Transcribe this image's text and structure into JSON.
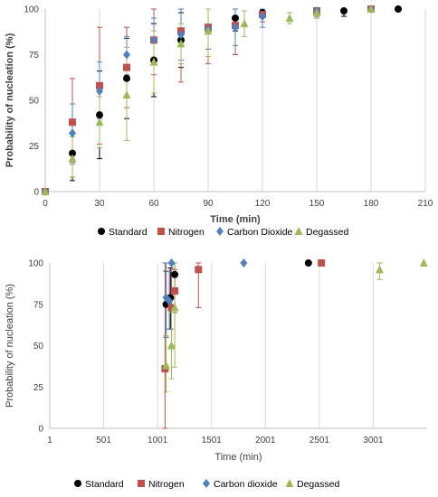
{
  "series_colors": {
    "Standard": "#000000",
    "Nitrogen": "#c0504d",
    "Carbon Dioxide": "#4f81bd",
    "Degassed": "#9bbb59"
  },
  "chart_data": [
    {
      "type": "scatter",
      "title": "",
      "xlabel": "Time (min)",
      "ylabel": "Probability of nucleation (%)",
      "xlim": [
        0,
        210
      ],
      "ylim": [
        0,
        100
      ],
      "xticks": [
        0,
        30,
        60,
        90,
        120,
        150,
        180,
        210
      ],
      "yticks": [
        0,
        25,
        50,
        75,
        100
      ],
      "grid": "vertical",
      "legend_position": "bottom",
      "series": [
        {
          "name": "Standard",
          "marker": "circle",
          "points": [
            {
              "x": 0,
              "y": 0,
              "lo": 0,
              "hi": 0
            },
            {
              "x": 15,
              "y": 21,
              "lo": 6,
              "hi": 37
            },
            {
              "x": 30,
              "y": 42,
              "lo": 18,
              "hi": 66
            },
            {
              "x": 45,
              "y": 62,
              "lo": 40,
              "hi": 84
            },
            {
              "x": 60,
              "y": 72,
              "lo": 52,
              "hi": 92
            },
            {
              "x": 75,
              "y": 83,
              "lo": 68,
              "hi": 98
            },
            {
              "x": 90,
              "y": 89,
              "lo": 78,
              "hi": 100
            },
            {
              "x": 105,
              "y": 95,
              "lo": 88,
              "hi": 100
            },
            {
              "x": 120,
              "y": 98,
              "lo": 96,
              "hi": 100
            },
            {
              "x": 165,
              "y": 99,
              "lo": 96,
              "hi": 100
            },
            {
              "x": 195,
              "y": 100,
              "lo": 100,
              "hi": 100
            }
          ]
        },
        {
          "name": "Nitrogen",
          "marker": "square",
          "points": [
            {
              "x": 0,
              "y": 0,
              "lo": 0,
              "hi": 0
            },
            {
              "x": 15,
              "y": 38,
              "lo": 15,
              "hi": 62
            },
            {
              "x": 30,
              "y": 58,
              "lo": 26,
              "hi": 90
            },
            {
              "x": 45,
              "y": 68,
              "lo": 46,
              "hi": 90
            },
            {
              "x": 60,
              "y": 83,
              "lo": 64,
              "hi": 100
            },
            {
              "x": 75,
              "y": 88,
              "lo": 60,
              "hi": 100
            },
            {
              "x": 90,
              "y": 90,
              "lo": 70,
              "hi": 100
            },
            {
              "x": 105,
              "y": 91,
              "lo": 75,
              "hi": 100
            },
            {
              "x": 120,
              "y": 97,
              "lo": 93,
              "hi": 100
            },
            {
              "x": 150,
              "y": 99,
              "lo": 95,
              "hi": 100
            },
            {
              "x": 180,
              "y": 100,
              "lo": 100,
              "hi": 100
            }
          ]
        },
        {
          "name": "Carbon Dioxide",
          "marker": "diamond",
          "points": [
            {
              "x": 0,
              "y": 0,
              "lo": 0,
              "hi": 0
            },
            {
              "x": 15,
              "y": 32,
              "lo": 16,
              "hi": 48
            },
            {
              "x": 30,
              "y": 55,
              "lo": 40,
              "hi": 71
            },
            {
              "x": 45,
              "y": 75,
              "lo": 64,
              "hi": 85
            },
            {
              "x": 60,
              "y": 83,
              "lo": 71,
              "hi": 95
            },
            {
              "x": 75,
              "y": 86,
              "lo": 72,
              "hi": 100
            },
            {
              "x": 90,
              "y": 89,
              "lo": 78,
              "hi": 100
            },
            {
              "x": 105,
              "y": 90,
              "lo": 80,
              "hi": 100
            },
            {
              "x": 120,
              "y": 96,
              "lo": 90,
              "hi": 100
            },
            {
              "x": 150,
              "y": 99,
              "lo": 96,
              "hi": 100
            },
            {
              "x": 180,
              "y": 100,
              "lo": 100,
              "hi": 100
            }
          ]
        },
        {
          "name": "Degassed",
          "marker": "triangle",
          "points": [
            {
              "x": 0,
              "y": 0,
              "lo": 0,
              "hi": 0
            },
            {
              "x": 15,
              "y": 18,
              "lo": 8,
              "hi": 30
            },
            {
              "x": 30,
              "y": 38,
              "lo": 24,
              "hi": 52
            },
            {
              "x": 45,
              "y": 53,
              "lo": 28,
              "hi": 79
            },
            {
              "x": 60,
              "y": 71,
              "lo": 54,
              "hi": 88
            },
            {
              "x": 75,
              "y": 81,
              "lo": 70,
              "hi": 92
            },
            {
              "x": 90,
              "y": 88,
              "lo": 74,
              "hi": 100
            },
            {
              "x": 110,
              "y": 92,
              "lo": 85,
              "hi": 99
            },
            {
              "x": 135,
              "y": 95,
              "lo": 92,
              "hi": 98
            },
            {
              "x": 150,
              "y": 98,
              "lo": 95,
              "hi": 100
            },
            {
              "x": 180,
              "y": 100,
              "lo": 100,
              "hi": 100
            }
          ]
        }
      ]
    },
    {
      "type": "scatter",
      "title": "",
      "xlabel": "Time (min)",
      "ylabel": "Probability of nucleation (%)",
      "xlim": [
        1,
        3501
      ],
      "ylim": [
        0,
        100
      ],
      "xticks": [
        1,
        501,
        1001,
        1501,
        2001,
        2501,
        3001
      ],
      "yticks": [
        0,
        25,
        50,
        75,
        100
      ],
      "grid": "vertical",
      "legend_position": "bottom",
      "series": [
        {
          "name": "Standard",
          "marker": "circle",
          "points": [
            {
              "x": 1080,
              "y": 75,
              "lo": 55,
              "hi": 95
            },
            {
              "x": 1120,
              "y": 79,
              "lo": 60,
              "hi": 97
            },
            {
              "x": 1160,
              "y": 93,
              "lo": 85,
              "hi": 100
            },
            {
              "x": 2400,
              "y": 100,
              "lo": 100,
              "hi": 100
            }
          ]
        },
        {
          "name": "Nitrogen",
          "marker": "square",
          "points": [
            {
              "x": 1070,
              "y": 36,
              "lo": 0,
              "hi": 100
            },
            {
              "x": 1130,
              "y": 73,
              "lo": 50,
              "hi": 96
            },
            {
              "x": 1160,
              "y": 83,
              "lo": 70,
              "hi": 96
            },
            {
              "x": 1380,
              "y": 96,
              "lo": 73,
              "hi": 100
            },
            {
              "x": 2520,
              "y": 100,
              "lo": 100,
              "hi": 100
            }
          ]
        },
        {
          "name": "Carbon dioxide",
          "marker": "diamond",
          "points": [
            {
              "x": 1080,
              "y": 79,
              "lo": 55,
              "hi": 100
            },
            {
              "x": 1110,
              "y": 77,
              "lo": 60,
              "hi": 95
            },
            {
              "x": 1130,
              "y": 100,
              "lo": 100,
              "hi": 100
            },
            {
              "x": 1800,
              "y": 100,
              "lo": 100,
              "hi": 100
            }
          ]
        },
        {
          "name": "Degassed",
          "marker": "triangle",
          "points": [
            {
              "x": 1080,
              "y": 38,
              "lo": 22,
              "hi": 56
            },
            {
              "x": 1130,
              "y": 50,
              "lo": 30,
              "hi": 70
            },
            {
              "x": 1160,
              "y": 73,
              "lo": 37,
              "hi": 100
            },
            {
              "x": 3060,
              "y": 96,
              "lo": 90,
              "hi": 100
            },
            {
              "x": 3470,
              "y": 100,
              "lo": 100,
              "hi": 100
            }
          ]
        }
      ]
    }
  ]
}
